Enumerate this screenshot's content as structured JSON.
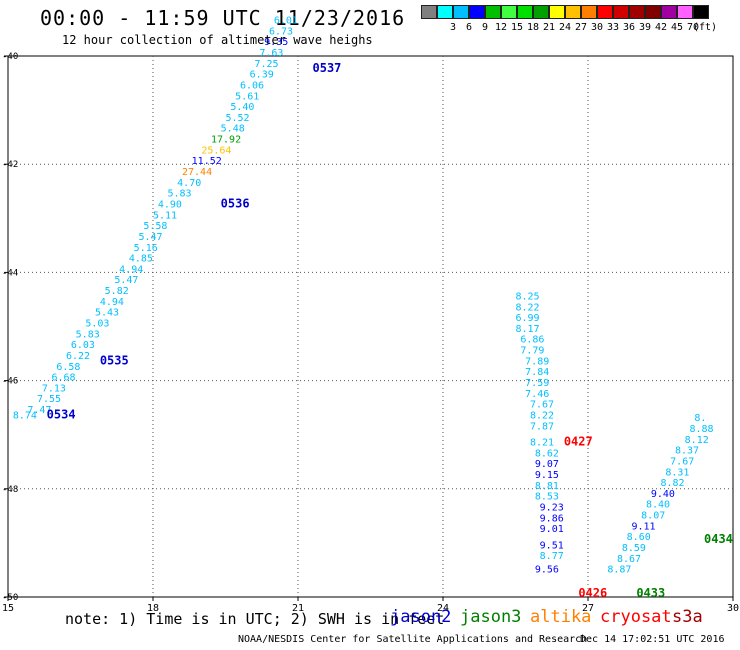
{
  "header": {
    "title": "00:00 - 11:59 UTC 11/23/2016",
    "subtitle": "12 hour collection of altimeter wave heighs"
  },
  "legend": {
    "items": [
      {
        "label": "",
        "color": "#808080"
      },
      {
        "label": "3",
        "color": "#00ffff"
      },
      {
        "label": "6",
        "color": "#00bfff"
      },
      {
        "label": "9",
        "color": "#0000ff"
      },
      {
        "label": "12",
        "color": "#00bf00"
      },
      {
        "label": "15",
        "color": "#40ff40"
      },
      {
        "label": "18",
        "color": "#00e000"
      },
      {
        "label": "21",
        "color": "#00a000"
      },
      {
        "label": "24",
        "color": "#ffff00"
      },
      {
        "label": "27",
        "color": "#ffc000"
      },
      {
        "label": "30",
        "color": "#ff8000"
      },
      {
        "label": "33",
        "color": "#ff0000"
      },
      {
        "label": "36",
        "color": "#d00000"
      },
      {
        "label": "39",
        "color": "#a00000"
      },
      {
        "label": "42",
        "color": "#800000"
      },
      {
        "label": "45",
        "color": "#a000a0"
      },
      {
        "label": "70",
        "color": "#ff60ff"
      },
      {
        "label": "",
        "color": "#000000"
      }
    ],
    "unit": "(ft)"
  },
  "map": {
    "lon_ticks": [
      "15",
      "18",
      "21",
      "24",
      "27",
      "30"
    ],
    "lat_ticks": [
      "-40",
      "-42",
      "-44",
      "-46",
      "-48",
      "-50"
    ],
    "lon_range": [
      15,
      30
    ],
    "lat_range": [
      -50,
      -40
    ]
  },
  "passes": [
    {
      "id": "0534",
      "color": "#0000cc",
      "lon": 15.8,
      "lat": -46.7
    },
    {
      "id": "0535",
      "color": "#0000cc",
      "lon": 16.9,
      "lat": -45.7
    },
    {
      "id": "0536",
      "color": "#0000cc",
      "lon": 19.4,
      "lat": -42.8
    },
    {
      "id": "0537",
      "color": "#0000cc",
      "lon": 21.3,
      "lat": -40.3
    },
    {
      "id": "0427",
      "color": "#ff0000",
      "lon": 26.5,
      "lat": -47.2
    },
    {
      "id": "0426",
      "color": "#ff0000",
      "lon": 26.8,
      "lat": -50.0
    },
    {
      "id": "0433",
      "color": "#008000",
      "lon": 28.0,
      "lat": -50.0
    },
    {
      "id": "0434",
      "color": "#008000",
      "lon": 29.4,
      "lat": -49.0
    }
  ],
  "swh": [
    {
      "v": "8.74",
      "c": "#00bfff",
      "lon": 15.1,
      "lat": -46.7
    },
    {
      "v": "7.47",
      "c": "#00bfff",
      "lon": 15.4,
      "lat": -46.6
    },
    {
      "v": "7.55",
      "c": "#00bfff",
      "lon": 15.6,
      "lat": -46.4
    },
    {
      "v": "7.13",
      "c": "#00bfff",
      "lon": 15.7,
      "lat": -46.2
    },
    {
      "v": "6.68",
      "c": "#00bfff",
      "lon": 15.9,
      "lat": -46.0
    },
    {
      "v": "6.58",
      "c": "#00bfff",
      "lon": 16.0,
      "lat": -45.8
    },
    {
      "v": "6.22",
      "c": "#00bfff",
      "lon": 16.2,
      "lat": -45.6
    },
    {
      "v": "6.03",
      "c": "#00bfff",
      "lon": 16.3,
      "lat": -45.4
    },
    {
      "v": "5.83",
      "c": "#00bfff",
      "lon": 16.4,
      "lat": -45.2
    },
    {
      "v": "5.03",
      "c": "#00bfff",
      "lon": 16.6,
      "lat": -45.0
    },
    {
      "v": "5.43",
      "c": "#00bfff",
      "lon": 16.8,
      "lat": -44.8
    },
    {
      "v": "4.94",
      "c": "#00bfff",
      "lon": 16.9,
      "lat": -44.6
    },
    {
      "v": "5.82",
      "c": "#00bfff",
      "lon": 17.0,
      "lat": -44.4
    },
    {
      "v": "5.47",
      "c": "#00bfff",
      "lon": 17.2,
      "lat": -44.2
    },
    {
      "v": "4.94",
      "c": "#00bfff",
      "lon": 17.3,
      "lat": -44.0
    },
    {
      "v": "4.85",
      "c": "#00bfff",
      "lon": 17.5,
      "lat": -43.8
    },
    {
      "v": "5.16",
      "c": "#00bfff",
      "lon": 17.6,
      "lat": -43.6
    },
    {
      "v": "5.47",
      "c": "#00bfff",
      "lon": 17.7,
      "lat": -43.4
    },
    {
      "v": "5.58",
      "c": "#00bfff",
      "lon": 17.8,
      "lat": -43.2
    },
    {
      "v": "5.11",
      "c": "#00bfff",
      "lon": 18.0,
      "lat": -43.0
    },
    {
      "v": "4.90",
      "c": "#00bfff",
      "lon": 18.1,
      "lat": -42.8
    },
    {
      "v": "5.83",
      "c": "#00bfff",
      "lon": 18.3,
      "lat": -42.6
    },
    {
      "v": "4.70",
      "c": "#00bfff",
      "lon": 18.5,
      "lat": -42.4
    },
    {
      "v": "27.44",
      "c": "#ff8000",
      "lon": 18.6,
      "lat": -42.2
    },
    {
      "v": "11.52",
      "c": "#0000ff",
      "lon": 18.8,
      "lat": -42.0
    },
    {
      "v": "25.64",
      "c": "#ffc000",
      "lon": 19.0,
      "lat": -41.8
    },
    {
      "v": "17.92",
      "c": "#00a000",
      "lon": 19.2,
      "lat": -41.6
    },
    {
      "v": "5.48",
      "c": "#00bfff",
      "lon": 19.4,
      "lat": -41.4
    },
    {
      "v": "5.52",
      "c": "#00bfff",
      "lon": 19.5,
      "lat": -41.2
    },
    {
      "v": "5.40",
      "c": "#00bfff",
      "lon": 19.6,
      "lat": -41.0
    },
    {
      "v": "5.61",
      "c": "#00bfff",
      "lon": 19.7,
      "lat": -40.8
    },
    {
      "v": "6.06",
      "c": "#00bfff",
      "lon": 19.8,
      "lat": -40.6
    },
    {
      "v": "6.39",
      "c": "#00bfff",
      "lon": 20.0,
      "lat": -40.4
    },
    {
      "v": "7.25",
      "c": "#00bfff",
      "lon": 20.1,
      "lat": -40.2
    },
    {
      "v": "7.63",
      "c": "#00bfff",
      "lon": 20.2,
      "lat": -40.0
    },
    {
      "v": "9.35",
      "c": "#0000ff",
      "lon": 20.3,
      "lat": -39.8
    },
    {
      "v": "6.73",
      "c": "#00bfff",
      "lon": 20.4,
      "lat": -39.6
    },
    {
      "v": "6.01",
      "c": "#00bfff",
      "lon": 20.5,
      "lat": -39.4
    },
    {
      "v": "8.25",
      "c": "#00bfff",
      "lon": 25.5,
      "lat": -44.5
    },
    {
      "v": "8.22",
      "c": "#00bfff",
      "lon": 25.5,
      "lat": -44.7
    },
    {
      "v": "6.99",
      "c": "#00bfff",
      "lon": 25.5,
      "lat": -44.9
    },
    {
      "v": "8.17",
      "c": "#00bfff",
      "lon": 25.5,
      "lat": -45.1
    },
    {
      "v": "6.86",
      "c": "#00bfff",
      "lon": 25.6,
      "lat": -45.3
    },
    {
      "v": "7.79",
      "c": "#00bfff",
      "lon": 25.6,
      "lat": -45.5
    },
    {
      "v": "7.89",
      "c": "#00bfff",
      "lon": 25.7,
      "lat": -45.7
    },
    {
      "v": "7.84",
      "c": "#00bfff",
      "lon": 25.7,
      "lat": -45.9
    },
    {
      "v": "7.59",
      "c": "#00bfff",
      "lon": 25.7,
      "lat": -46.1
    },
    {
      "v": "7.46",
      "c": "#00bfff",
      "lon": 25.7,
      "lat": -46.3
    },
    {
      "v": "7.67",
      "c": "#00bfff",
      "lon": 25.8,
      "lat": -46.5
    },
    {
      "v": "8.22",
      "c": "#00bfff",
      "lon": 25.8,
      "lat": -46.7
    },
    {
      "v": "7.87",
      "c": "#00bfff",
      "lon": 25.8,
      "lat": -46.9
    },
    {
      "v": "8.21",
      "c": "#00bfff",
      "lon": 25.8,
      "lat": -47.2
    },
    {
      "v": "8.62",
      "c": "#00bfff",
      "lon": 25.9,
      "lat": -47.4
    },
    {
      "v": "9.07",
      "c": "#0000ff",
      "lon": 25.9,
      "lat": -47.6
    },
    {
      "v": "9.15",
      "c": "#0000ff",
      "lon": 25.9,
      "lat": -47.8
    },
    {
      "v": "8.81",
      "c": "#00bfff",
      "lon": 25.9,
      "lat": -48.0
    },
    {
      "v": "8.53",
      "c": "#00bfff",
      "lon": 25.9,
      "lat": -48.2
    },
    {
      "v": "9.23",
      "c": "#0000ff",
      "lon": 26.0,
      "lat": -48.4
    },
    {
      "v": "9.86",
      "c": "#0000ff",
      "lon": 26.0,
      "lat": -48.6
    },
    {
      "v": "9.01",
      "c": "#0000ff",
      "lon": 26.0,
      "lat": -48.8
    },
    {
      "v": "9.51",
      "c": "#0000ff",
      "lon": 26.0,
      "lat": -49.1
    },
    {
      "v": "8.77",
      "c": "#00bfff",
      "lon": 26.0,
      "lat": -49.3
    },
    {
      "v": "9.56",
      "c": "#0000ff",
      "lon": 25.9,
      "lat": -49.55
    },
    {
      "v": "8.87",
      "c": "#00bfff",
      "lon": 27.4,
      "lat": -49.55
    },
    {
      "v": "8.67",
      "c": "#00bfff",
      "lon": 27.6,
      "lat": -49.35
    },
    {
      "v": "8.59",
      "c": "#00bfff",
      "lon": 27.7,
      "lat": -49.15
    },
    {
      "v": "8.60",
      "c": "#00bfff",
      "lon": 27.8,
      "lat": -48.95
    },
    {
      "v": "9.11",
      "c": "#0000ff",
      "lon": 27.9,
      "lat": -48.75
    },
    {
      "v": "8.07",
      "c": "#00bfff",
      "lon": 28.1,
      "lat": -48.55
    },
    {
      "v": "8.40",
      "c": "#00bfff",
      "lon": 28.2,
      "lat": -48.35
    },
    {
      "v": "9.40",
      "c": "#0000ff",
      "lon": 28.3,
      "lat": -48.15
    },
    {
      "v": "8.82",
      "c": "#00bfff",
      "lon": 28.5,
      "lat": -47.95
    },
    {
      "v": "8.31",
      "c": "#00bfff",
      "lon": 28.6,
      "lat": -47.75
    },
    {
      "v": "7.67",
      "c": "#00bfff",
      "lon": 28.7,
      "lat": -47.55
    },
    {
      "v": "8.37",
      "c": "#00bfff",
      "lon": 28.8,
      "lat": -47.35
    },
    {
      "v": "8.12",
      "c": "#00bfff",
      "lon": 29.0,
      "lat": -47.15
    },
    {
      "v": "8.88",
      "c": "#00bfff",
      "lon": 29.1,
      "lat": -46.95
    },
    {
      "v": "8.",
      "c": "#00bfff",
      "lon": 29.2,
      "lat": -46.75
    }
  ],
  "note": "note: 1) Time is in UTC; 2) SWH is in feet",
  "satellites": [
    {
      "name": "jason2",
      "color": "#0000cc"
    },
    {
      "name": "jason3",
      "color": "#008000"
    },
    {
      "name": "altika",
      "color": "#ff8000"
    },
    {
      "name": "cryosat",
      "color": "#ff0000"
    },
    {
      "name": "s3a",
      "color": "#a00000"
    }
  ],
  "footer": {
    "credit": "NOAA/NESDIS Center for Satellite Applications and Research",
    "timestamp": "Dec 14 17:02:51 UTC 2016"
  }
}
